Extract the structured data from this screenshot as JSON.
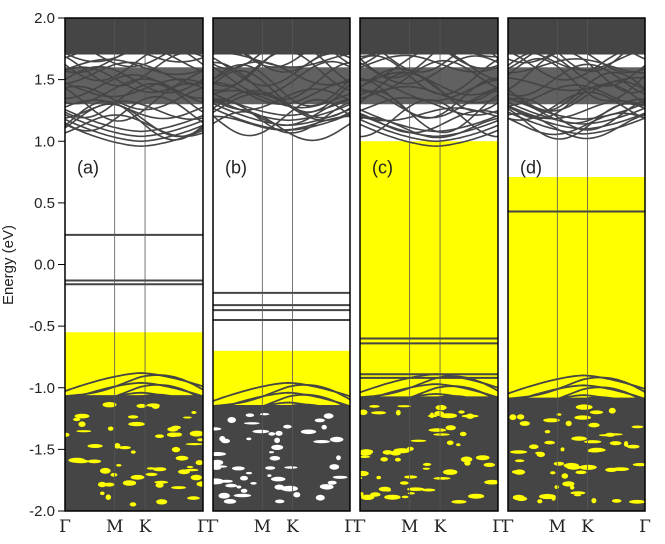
{
  "chart_data": {
    "type": "line",
    "ylabel": "Energy (eV)",
    "ylim": [
      -2.0,
      2.0
    ],
    "yticks": [
      "-2.0",
      "-1.5",
      "-1.0",
      "-0.5",
      "0.0",
      "0.5",
      "1.0",
      "1.5",
      "2.0"
    ],
    "kpath": [
      "Γ",
      "M",
      "K",
      "Γ"
    ],
    "colors": {
      "bands": "#454545",
      "fill": "#ffff00",
      "frame": "#000000"
    },
    "panels": [
      {
        "label": "(a)",
        "fill_top": -0.55,
        "conduction_bottom": 0.96,
        "gap_levels": [
          0.24,
          -0.13,
          -0.16
        ],
        "valence_top": -0.88
      },
      {
        "label": "(b)",
        "fill_top": -0.7,
        "conduction_bottom": 1.09,
        "gap_levels": [
          -0.23,
          -0.33,
          -0.37,
          -0.45
        ],
        "valence_top": -0.96
      },
      {
        "label": "(c)",
        "fill_top": 1.0,
        "conduction_bottom": 0.96,
        "gap_levels": [
          -0.6,
          -0.64,
          -0.89,
          -0.92
        ],
        "valence_top": -0.89
      },
      {
        "label": "(d)",
        "fill_top": 0.71,
        "conduction_bottom": 1.06,
        "gap_levels": [
          0.43
        ],
        "valence_top": -0.9
      }
    ]
  }
}
